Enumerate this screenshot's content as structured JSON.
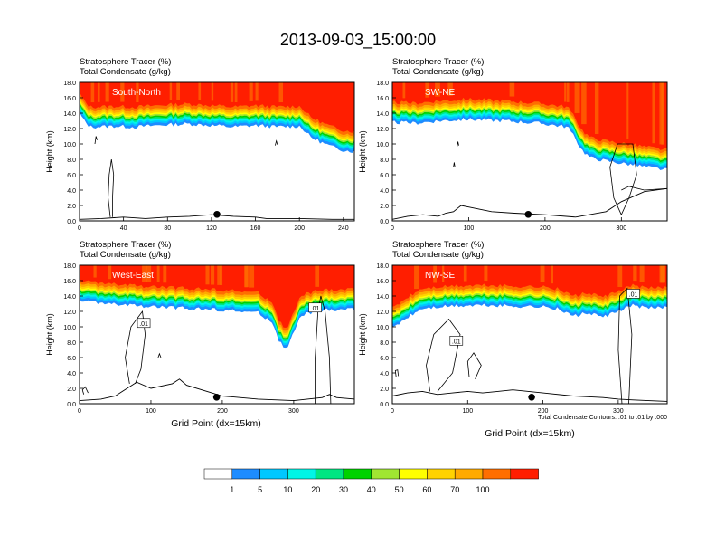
{
  "page": {
    "title": "2013-09-03_15:00:00",
    "contour_note": "Total Condensate Contours: .01 to .01 by .000"
  },
  "colors": {
    "levels": [
      "#ffffff",
      "#1e8cff",
      "#00c8ff",
      "#00f5e6",
      "#00e682",
      "#00d200",
      "#a0e632",
      "#ffff00",
      "#ffd200",
      "#ffaa00",
      "#ff6e00",
      "#ff1e00"
    ],
    "contour": "#000000",
    "terrain": "#000000"
  },
  "chart_data": [
    {
      "type": "area",
      "panel_label": "South-North",
      "title_line1": "Stratosphere Tracer   (%)",
      "title_line2": "Total Condensate   (g/kg)",
      "ylabel": "Height (km)",
      "xlabel": "",
      "xlim": [
        0,
        250
      ],
      "ylim": [
        0,
        18
      ],
      "xticks": [
        0,
        40,
        80,
        120,
        160,
        200,
        240
      ],
      "yticks": [
        0,
        2,
        4,
        6,
        8,
        10,
        12,
        14,
        16,
        18
      ],
      "ytick_labels": [
        "0.0",
        "2.0",
        "4.0",
        "6.0",
        "8.0",
        "10.0",
        "12.0",
        "14.0",
        "16.0",
        "18.0"
      ],
      "tropopause_km": {
        "x": [
          0,
          5,
          10,
          30,
          50,
          80,
          100,
          120,
          140,
          160,
          180,
          200,
          205,
          210,
          220,
          230,
          240,
          250
        ],
        "y": [
          15.4,
          14.2,
          13.6,
          13.7,
          13.6,
          13.9,
          14.0,
          13.8,
          13.6,
          13.8,
          13.6,
          13.7,
          13.1,
          12.3,
          11.6,
          11.0,
          10.6,
          10.4
        ]
      },
      "terrain_km": {
        "x": [
          0,
          20,
          40,
          60,
          80,
          100,
          120,
          130,
          140,
          160,
          170,
          200,
          230,
          250
        ],
        "y": [
          0.2,
          0.3,
          0.5,
          0.3,
          0.5,
          0.6,
          0.8,
          0.7,
          0.6,
          0.5,
          0.3,
          0.3,
          0.2,
          0.2
        ]
      },
      "marker_x": 125
    },
    {
      "type": "area",
      "panel_label": "SW-NE",
      "title_line1": "Stratosphere Tracer   (%)",
      "title_line2": "Total Condensate   (g/kg)",
      "ylabel": "Height (km)",
      "xlabel": "",
      "xlim": [
        0,
        360
      ],
      "ylim": [
        0,
        18
      ],
      "xticks": [
        0,
        100,
        200,
        300
      ],
      "yticks": [
        0,
        2,
        4,
        6,
        8,
        10,
        12,
        14,
        16,
        18
      ],
      "ytick_labels": [
        "0.0",
        "2.0",
        "4.0",
        "6.0",
        "8.0",
        "10.0",
        "12.0",
        "14.0",
        "16.0",
        "18.0"
      ],
      "tropopause_km": {
        "x": [
          0,
          30,
          60,
          100,
          150,
          200,
          230,
          240,
          250,
          260,
          280,
          300,
          320,
          340,
          360
        ],
        "y": [
          14.2,
          14.1,
          14.4,
          14.6,
          14.4,
          14.0,
          13.6,
          12.0,
          10.4,
          9.6,
          9.2,
          8.9,
          8.6,
          8.3,
          8.0
        ]
      },
      "terrain_km": {
        "x": [
          0,
          20,
          40,
          60,
          70,
          80,
          90,
          100,
          130,
          160,
          200,
          240,
          280,
          300,
          330,
          360
        ],
        "y": [
          0.2,
          0.6,
          0.8,
          0.6,
          1.0,
          1.2,
          2.0,
          1.8,
          1.2,
          1.0,
          0.8,
          0.5,
          1.2,
          2.5,
          3.8,
          4.2
        ]
      },
      "marker_x": 178
    },
    {
      "type": "area",
      "panel_label": "West-East",
      "title_line1": "Stratosphere Tracer   (%)",
      "title_line2": "Total Condensate   (g/kg)",
      "ylabel": "Height (km)",
      "xlabel": "Grid Point (dx=15km)",
      "xlim": [
        0,
        385
      ],
      "ylim": [
        0,
        18
      ],
      "xticks": [
        0,
        100,
        200,
        300
      ],
      "yticks": [
        0,
        2,
        4,
        6,
        8,
        10,
        12,
        14,
        16,
        18
      ],
      "ytick_labels": [
        "0.0",
        "2.0",
        "4.0",
        "6.0",
        "8.0",
        "10.0",
        "12.0",
        "14.0",
        "16.0",
        "18.0"
      ],
      "tropopause_km": {
        "x": [
          0,
          50,
          100,
          150,
          200,
          250,
          270,
          280,
          290,
          300,
          310,
          330,
          350,
          385
        ],
        "y": [
          14.8,
          14.3,
          14.0,
          13.8,
          13.6,
          13.2,
          12.0,
          9.5,
          8.4,
          10.6,
          12.8,
          13.4,
          13.6,
          13.7
        ]
      },
      "terrain_km": {
        "x": [
          0,
          30,
          50,
          60,
          80,
          100,
          130,
          140,
          150,
          200,
          250,
          300,
          340,
          350,
          360,
          385
        ],
        "y": [
          0.4,
          0.6,
          1.0,
          1.6,
          2.8,
          2.0,
          2.6,
          3.2,
          2.4,
          1.0,
          0.6,
          0.4,
          0.8,
          1.2,
          0.8,
          0.6
        ]
      },
      "marker_x": 192,
      "contour_labels": [
        ".01",
        ".01"
      ]
    },
    {
      "type": "area",
      "panel_label": "NW-SE",
      "title_line1": "Stratosphere Tracer   (%)",
      "title_line2": "Total Condensate   (g/kg)",
      "ylabel": "Height (km)",
      "xlabel": "Grid Point (dx=15km)",
      "xlim": [
        0,
        365
      ],
      "ylim": [
        0,
        18
      ],
      "xticks": [
        0,
        100,
        200,
        300
      ],
      "yticks": [
        0,
        2,
        4,
        6,
        8,
        10,
        12,
        14,
        16,
        18
      ],
      "ytick_labels": [
        "0.0",
        "2.0",
        "4.0",
        "6.0",
        "8.0",
        "10.0",
        "12.0",
        "14.0",
        "16.0",
        "18.0"
      ],
      "tropopause_km": {
        "x": [
          0,
          20,
          40,
          80,
          120,
          160,
          200,
          220,
          240,
          260,
          280,
          300,
          320,
          340,
          365
        ],
        "y": [
          11.2,
          12.6,
          13.8,
          14.1,
          14.2,
          14.1,
          14.0,
          13.7,
          12.8,
          13.2,
          12.6,
          13.4,
          14.2,
          13.8,
          14.0
        ]
      },
      "terrain_km": {
        "x": [
          0,
          20,
          40,
          60,
          80,
          100,
          120,
          140,
          160,
          200,
          240,
          280,
          300,
          320,
          340,
          365
        ],
        "y": [
          1.0,
          1.4,
          1.6,
          1.2,
          1.4,
          1.6,
          1.4,
          1.6,
          1.8,
          1.4,
          1.0,
          0.8,
          0.6,
          0.5,
          0.4,
          0.3
        ]
      },
      "marker_x": 185,
      "contour_labels": [
        ".01",
        ".01"
      ]
    }
  ],
  "colorbar": {
    "tick_labels": [
      "1",
      "5",
      "10",
      "20",
      "30",
      "40",
      "50",
      "60",
      "70",
      "100"
    ]
  }
}
